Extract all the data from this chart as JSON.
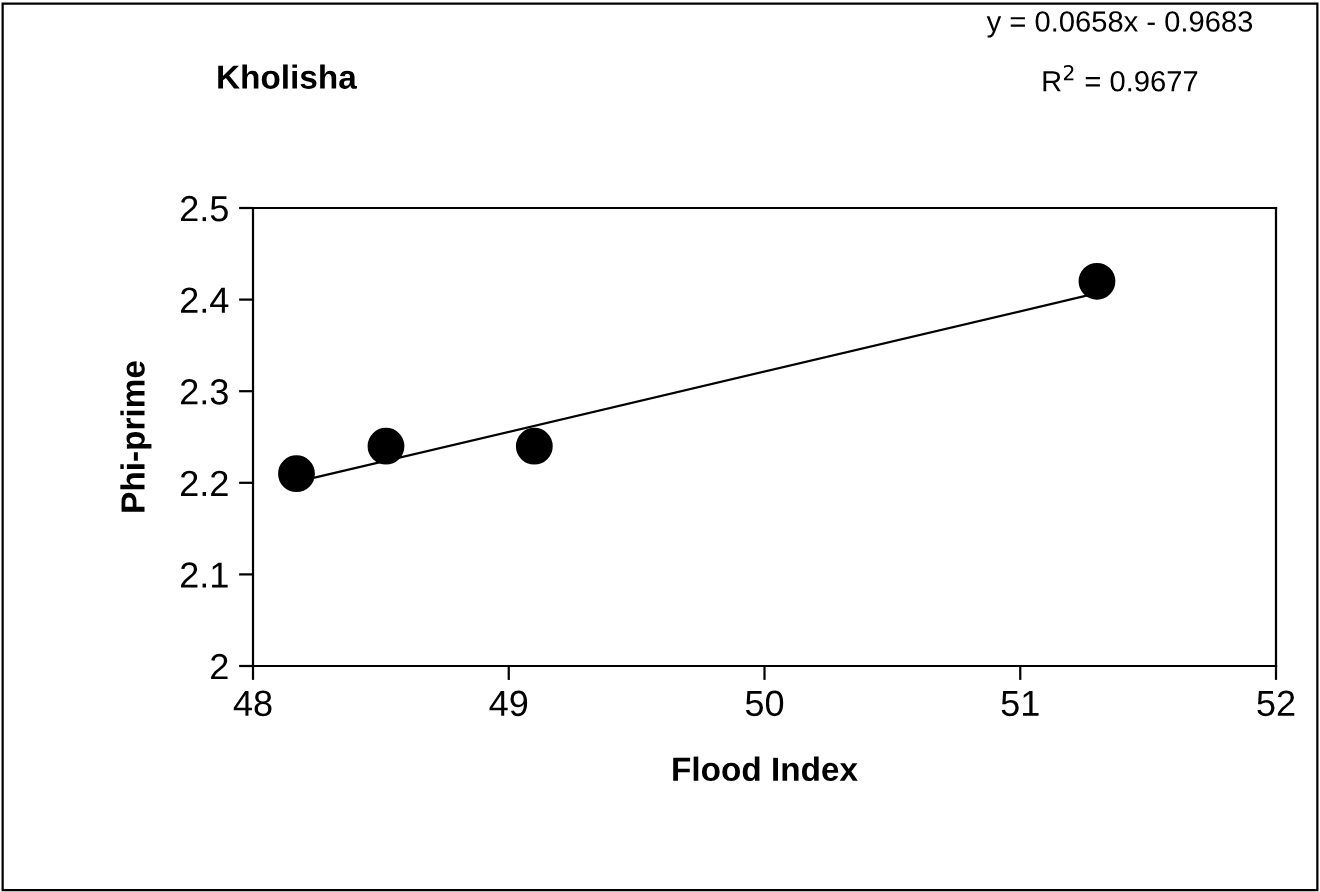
{
  "chart_data": {
    "type": "scatter",
    "title": "Kholisha",
    "xlabel": "Flood Index",
    "ylabel": "Phi-prime",
    "annotations": [
      "y = 0.0658x - 0.9683",
      "R$^{2}$ = 0.9677"
    ],
    "series": [
      {
        "color": "#000000",
        "marker": "circle",
        "x": [
          48.17,
          48.52,
          49.1,
          51.3
        ],
        "values": [
          2.21,
          2.24,
          2.24,
          2.42
        ]
      },
      {
        "type": "line",
        "color": "#000000",
        "line_style": "solid",
        "marker": "none",
        "x": [
          48.17,
          51.3
        ],
        "values": [
          2.201,
          2.407
        ]
      }
    ],
    "xlim": [
      48,
      52
    ],
    "xticks": [
      48,
      49,
      50,
      51,
      52
    ],
    "ylim": [
      2,
      2.5
    ],
    "yticks": [
      2,
      2.1,
      2.2,
      2.3,
      2.4,
      2.5
    ],
    "grid": false,
    "legend": false
  }
}
